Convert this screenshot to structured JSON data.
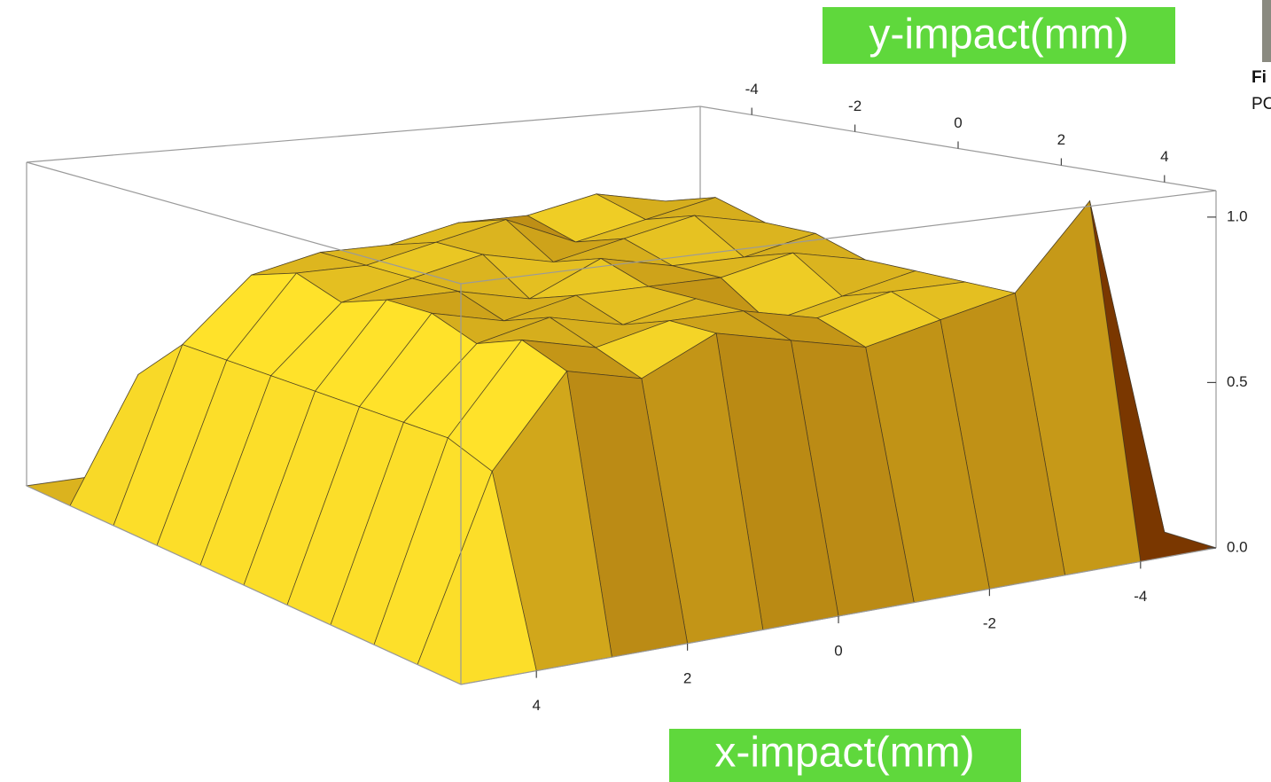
{
  "chart_data": {
    "type": "surface3d",
    "ylabel": "y-impact(mm)",
    "xlabel": "x-impact(mm)",
    "x": [
      -5,
      -4,
      -3,
      -2,
      -1,
      0,
      1,
      2,
      3,
      4,
      5
    ],
    "y": [
      -5,
      -4,
      -3,
      -2,
      -1,
      0,
      1,
      2,
      3,
      4,
      5
    ],
    "z": [
      [
        0,
        0,
        0,
        0,
        0,
        0,
        0,
        0,
        0,
        0,
        0
      ],
      [
        0,
        0.5,
        0.55,
        0.6,
        0.6,
        0.55,
        0.55,
        0.5,
        0.45,
        0.4,
        0
      ],
      [
        0,
        0.6,
        0.85,
        0.9,
        0.85,
        0.85,
        0.8,
        0.8,
        0.75,
        0.55,
        0
      ],
      [
        0,
        0.65,
        0.9,
        0.85,
        0.8,
        0.9,
        0.85,
        0.8,
        0.8,
        0.55,
        0
      ],
      [
        0,
        0.6,
        0.85,
        0.9,
        0.85,
        0.8,
        0.85,
        0.8,
        0.75,
        0.55,
        0
      ],
      [
        0,
        0.65,
        0.85,
        0.8,
        0.8,
        0.85,
        0.75,
        0.8,
        0.8,
        0.55,
        0
      ],
      [
        0,
        0.6,
        0.8,
        0.85,
        0.8,
        0.8,
        0.8,
        0.75,
        0.8,
        0.55,
        0
      ],
      [
        0,
        0.6,
        0.8,
        0.75,
        0.7,
        0.8,
        0.75,
        0.8,
        0.75,
        0.55,
        0
      ],
      [
        0,
        0.65,
        0.8,
        0.8,
        0.75,
        0.8,
        0.8,
        0.75,
        0.8,
        0.55,
        0
      ],
      [
        0,
        1.05,
        0.8,
        0.75,
        0.7,
        0.75,
        0.8,
        0.7,
        0.75,
        0.5,
        0
      ],
      [
        0,
        0,
        0,
        0,
        0,
        0,
        0,
        0,
        0,
        0,
        0
      ]
    ],
    "xlim": [
      -5,
      5
    ],
    "ylim": [
      -5,
      5
    ],
    "zlim": [
      0,
      1.08
    ],
    "xticks": [
      -4,
      -2,
      0,
      2,
      4
    ],
    "yticks": [
      -4,
      -2,
      0,
      2,
      4
    ],
    "zticks": [
      {
        "value": 0,
        "label": "0.0"
      },
      {
        "value": 0.5,
        "label": "0.5"
      },
      {
        "value": 1,
        "label": "1.0"
      }
    ],
    "colormap": [
      "#7a3700",
      "#ffe22a"
    ],
    "caption_fragments": [
      "Fi",
      "PC"
    ]
  }
}
